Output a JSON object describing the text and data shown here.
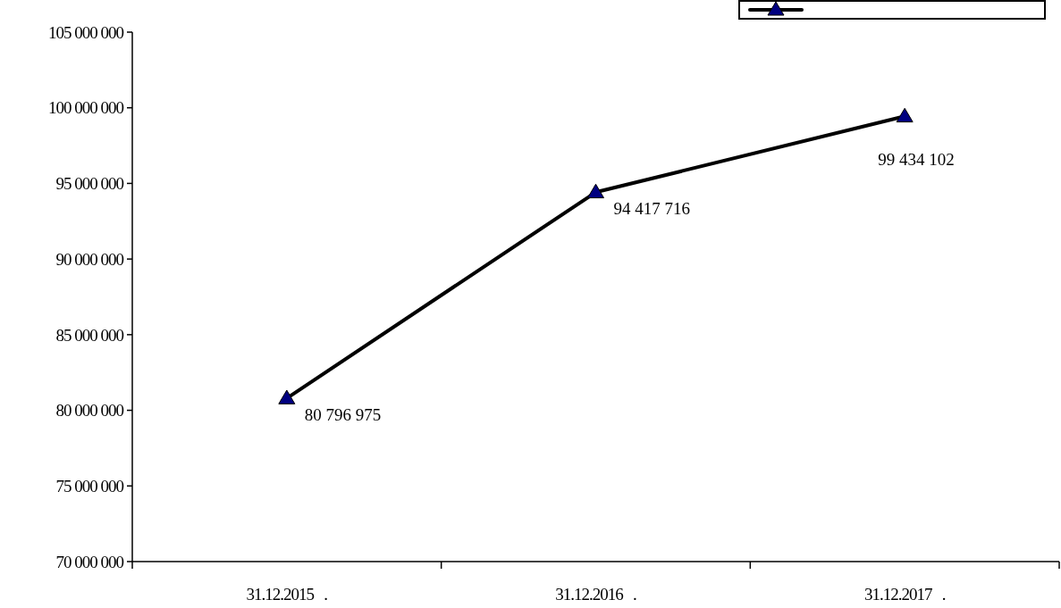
{
  "chart_data": {
    "type": "line",
    "categories": [
      "31.12.2015   .",
      "31.12.2016   .",
      "31.12.2017   ."
    ],
    "series": [
      {
        "color": "#000000",
        "colors": [
          "#000080",
          "#000080",
          "#000080"
        ],
        "values": [
          80796975,
          94417716,
          99434102
        ],
        "value_labels": [
          "80 796 975",
          "94 417 716",
          "99 434 102"
        ]
      }
    ],
    "ylim": [
      70000000,
      105000000
    ],
    "yticks": [
      {
        "value": 70000000,
        "label": "70 000 000"
      },
      {
        "value": 75000000,
        "label": "75 000 000"
      },
      {
        "value": 80000000,
        "label": "80 000 000"
      },
      {
        "value": 85000000,
        "label": "85 000 000"
      },
      {
        "value": 90000000,
        "label": "90 000 000"
      },
      {
        "value": 95000000,
        "label": "95 000 000"
      },
      {
        "value": 100000000,
        "label": "100 000 000"
      },
      {
        "value": 105000000,
        "label": "105 000 000"
      }
    ],
    "marker": "triangle",
    "grid": false
  }
}
